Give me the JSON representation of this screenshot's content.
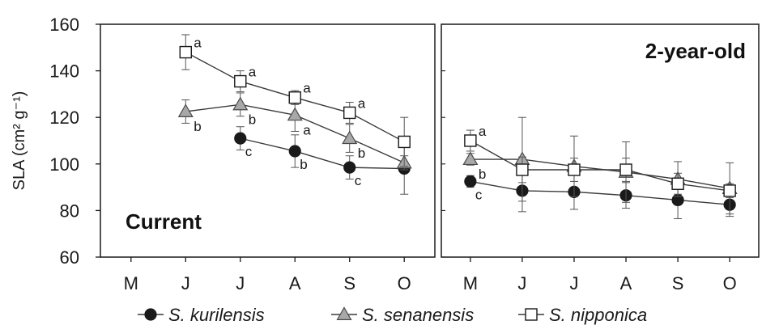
{
  "chart_data": {
    "type": "line",
    "ylabel": "SLA (cm² g⁻¹)",
    "ylim": [
      60,
      160
    ],
    "yticks": [
      60,
      80,
      100,
      120,
      140,
      160
    ],
    "grid": false,
    "legend_position": "bottom",
    "legend": [
      "S. kurilensis",
      "S. senanensis",
      "S. nipponica"
    ],
    "series_styles": [
      {
        "name": "S. kurilensis",
        "marker": "circle",
        "fill": "#1a1a1a"
      },
      {
        "name": "S. senanensis",
        "marker": "triangle",
        "fill": "#a8a8a8"
      },
      {
        "name": "S. nipponica",
        "marker": "square",
        "fill": "#ffffff"
      }
    ],
    "panels": [
      {
        "title": "Current",
        "categories": [
          "M",
          "J",
          "J",
          "A",
          "S",
          "O"
        ],
        "series": [
          {
            "name": "S. kurilensis",
            "values": [
              null,
              null,
              111,
              105.5,
              98.5,
              98
            ],
            "errors": [
              null,
              null,
              5,
              7,
              5,
              11
            ],
            "letters": [
              null,
              null,
              "c",
              "b",
              "c",
              ""
            ]
          },
          {
            "name": "S. senanensis",
            "values": [
              null,
              122.5,
              125.5,
              121,
              111,
              100.5
            ],
            "errors": [
              null,
              5,
              5,
              7,
              6,
              3
            ],
            "letters": [
              null,
              "b",
              "b",
              "a",
              "b",
              ""
            ]
          },
          {
            "name": "S. nipponica",
            "values": [
              null,
              148,
              135.5,
              128.5,
              122,
              109.5
            ],
            "errors": [
              null,
              7.5,
              4.5,
              3,
              4.5,
              10.5
            ],
            "letters": [
              null,
              "a",
              "a",
              "a",
              "a",
              ""
            ]
          }
        ]
      },
      {
        "title": "2-year-old",
        "categories": [
          "M",
          "J",
          "J",
          "A",
          "S",
          "O"
        ],
        "series": [
          {
            "name": "S. kurilensis",
            "values": [
              92.5,
              88.5,
              88,
              86.5,
              84.5,
              82.5
            ],
            "errors": [
              2.5,
              9,
              7.5,
              5.5,
              8,
              5
            ],
            "letters": [
              "c",
              "",
              "",
              "",
              "",
              ""
            ]
          },
          {
            "name": "S. senanensis",
            "values": [
              102,
              102,
              99,
              96.5,
              93.5,
              89.5
            ],
            "errors": [
              2.5,
              18,
              13,
              13,
              7.5,
              11
            ],
            "letters": [
              "b",
              "",
              "",
              "",
              "",
              ""
            ]
          },
          {
            "name": "S. nipponica",
            "values": [
              110,
              97.5,
              97.5,
              97.5,
              91.5,
              88.5
            ],
            "errors": [
              4.5,
              5.5,
              5,
              5,
              4.5,
              3
            ],
            "letters": [
              "a",
              "",
              "",
              "",
              "",
              ""
            ]
          }
        ]
      }
    ]
  }
}
